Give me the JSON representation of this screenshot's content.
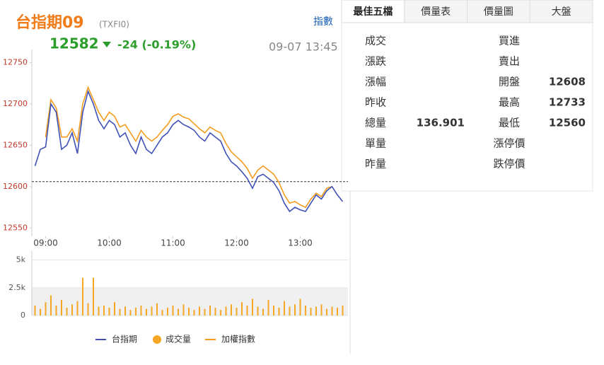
{
  "header": {
    "title": "台指期09",
    "code": "(TXFI0)",
    "price": "12582",
    "change": "-24 (-0.19%)",
    "datetime": "09-07 13:45",
    "link": "指數"
  },
  "tabs": [
    "最佳五檔",
    "價量表",
    "價量圖",
    "大盤"
  ],
  "quote": {
    "left": [
      {
        "label": "成交"
      },
      {
        "label": "漲跌"
      },
      {
        "label": "漲幅"
      },
      {
        "label": "昨收"
      },
      {
        "label": "總量",
        "value": "136.901"
      },
      {
        "label": "單量"
      },
      {
        "label": "昨量"
      }
    ],
    "right": [
      {
        "label": "買進"
      },
      {
        "label": "賣出"
      },
      {
        "label": "開盤",
        "value": "12608"
      },
      {
        "label": "最高",
        "value": "12733"
      },
      {
        "label": "最低",
        "value": "12560"
      },
      {
        "label": "漲停價"
      },
      {
        "label": "跌停價"
      }
    ]
  },
  "chart_data": [
    {
      "type": "line",
      "x": [
        530,
        535,
        540,
        545,
        550,
        555,
        560,
        565,
        570,
        575,
        580,
        585,
        590,
        595,
        600,
        605,
        610,
        615,
        620,
        625,
        630,
        635,
        640,
        645,
        650,
        655,
        660,
        665,
        670,
        675,
        680,
        685,
        690,
        695,
        700,
        705,
        710,
        715,
        720,
        725,
        730,
        735,
        740,
        745,
        750,
        755,
        760,
        765,
        770,
        775,
        780,
        785,
        790,
        795,
        800,
        805,
        810,
        815,
        820
      ],
      "xlim": [
        527,
        825
      ],
      "xticks": [
        {
          "value": 540,
          "label": "09:00"
        },
        {
          "value": 600,
          "label": "10:00"
        },
        {
          "value": 660,
          "label": "11:00"
        },
        {
          "value": 720,
          "label": "12:00"
        },
        {
          "value": 780,
          "label": "13:00"
        }
      ],
      "ylim": [
        12540,
        12770
      ],
      "yticks": [
        12550,
        12600,
        12650,
        12700,
        12750
      ],
      "reference": 12606,
      "series": [
        {
          "name": "台指期",
          "color": "#3f51b5",
          "values": [
            12625,
            12645,
            12648,
            12700,
            12690,
            12645,
            12650,
            12665,
            12640,
            12690,
            12715,
            12700,
            12680,
            12670,
            12680,
            12675,
            12660,
            12665,
            12650,
            12640,
            12660,
            12645,
            12640,
            12650,
            12660,
            12665,
            12675,
            12680,
            12675,
            12672,
            12668,
            12660,
            12655,
            12665,
            12660,
            12655,
            12640,
            12630,
            12625,
            12618,
            12610,
            12598,
            12612,
            12615,
            12610,
            12605,
            12595,
            12580,
            12570,
            12575,
            12572,
            12570,
            12580,
            12590,
            12585,
            12595,
            12600,
            12590,
            12582
          ]
        },
        {
          "name": "加權指數",
          "color": "#f39c1f",
          "values": [
            null,
            null,
            12660,
            12705,
            12695,
            12660,
            12660,
            12670,
            12655,
            12700,
            12720,
            12705,
            12690,
            12680,
            12690,
            12685,
            12672,
            12675,
            12665,
            12655,
            12668,
            12660,
            12655,
            12660,
            12668,
            12675,
            12685,
            12688,
            12684,
            12682,
            12676,
            12670,
            12665,
            12672,
            12668,
            12665,
            12652,
            12642,
            12636,
            12630,
            12622,
            12610,
            12620,
            12625,
            12620,
            12615,
            12605,
            12590,
            12580,
            12582,
            12578,
            12575,
            12585,
            12592,
            12588,
            12598,
            12600,
            null,
            null
          ]
        }
      ]
    },
    {
      "type": "bar",
      "name": "成交量",
      "color": "#f5a623",
      "x": [
        530,
        535,
        540,
        545,
        550,
        555,
        560,
        565,
        570,
        575,
        580,
        585,
        590,
        595,
        600,
        605,
        610,
        615,
        620,
        625,
        630,
        635,
        640,
        645,
        650,
        655,
        660,
        665,
        670,
        675,
        680,
        685,
        690,
        695,
        700,
        705,
        710,
        715,
        720,
        725,
        730,
        735,
        740,
        745,
        750,
        755,
        760,
        765,
        770,
        775,
        780,
        785,
        790,
        795,
        800,
        805,
        810,
        815,
        820
      ],
      "xlim": [
        527,
        825
      ],
      "ylim": [
        0,
        6000
      ],
      "yticks": [
        0,
        {
          "value": 2500,
          "label": "2.5k"
        },
        {
          "value": 5000,
          "label": "5k"
        }
      ],
      "values": [
        900,
        600,
        1200,
        1800,
        900,
        1400,
        700,
        1000,
        1300,
        3400,
        1100,
        3400,
        800,
        900,
        700,
        1200,
        600,
        800,
        500,
        700,
        900,
        600,
        800,
        1100,
        500,
        700,
        900,
        600,
        1000,
        700,
        500,
        800,
        600,
        900,
        700,
        500,
        800,
        1000,
        700,
        1200,
        900,
        1500,
        800,
        600,
        1400,
        900,
        700,
        1300,
        800,
        1000,
        1500,
        900,
        700,
        800,
        1000,
        600,
        800,
        700,
        900
      ]
    }
  ]
}
